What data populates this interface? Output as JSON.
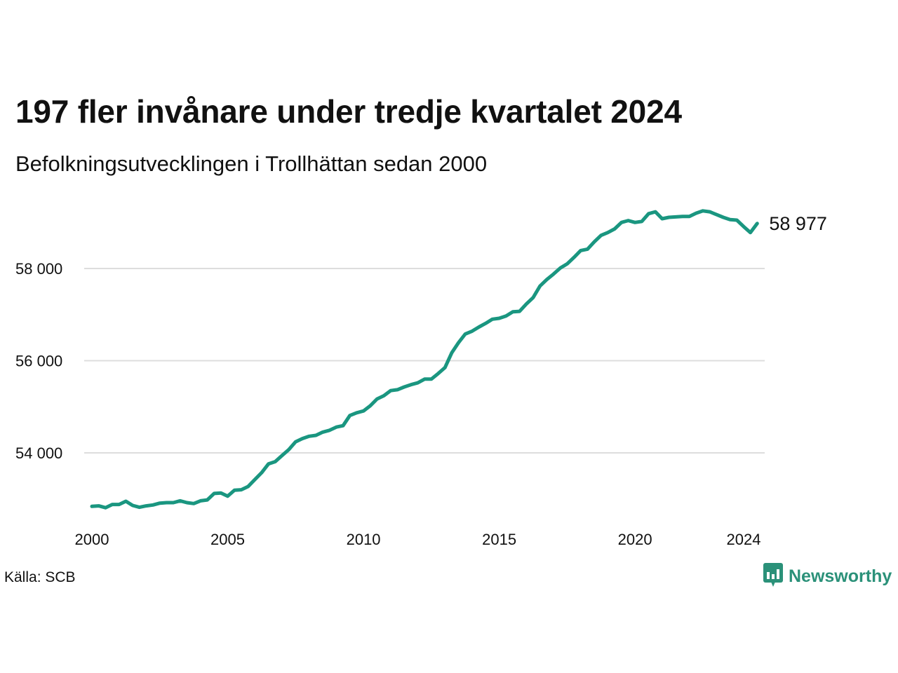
{
  "title": "197 fler invånare under tredje kvartalet 2024",
  "subtitle": "Befolkningsutvecklingen i Trollhättan sedan 2000",
  "source": "Källa: SCB",
  "brand": {
    "name": "Newsworthy",
    "icon": "newsworthy-logo-icon",
    "color": "#2b9179"
  },
  "colors": {
    "line": "#1a9680",
    "grid": "#dddddd",
    "text": "#111111"
  },
  "chart_data": {
    "type": "line",
    "title": "197 fler invånare under tredje kvartalet 2024",
    "subtitle": "Befolkningsutvecklingen i Trollhättan sedan 2000",
    "xlabel": "",
    "ylabel": "",
    "xlim": [
      2000,
      2024.75
    ],
    "ylim": [
      52500,
      59500
    ],
    "x_ticks": [
      2000,
      2005,
      2010,
      2015,
      2020,
      2024
    ],
    "x_tick_labels": [
      "2000",
      "2005",
      "2010",
      "2015",
      "2020",
      "2024"
    ],
    "y_ticks": [
      54000,
      56000,
      58000
    ],
    "y_tick_labels": [
      "54 000",
      "56 000",
      "58 000"
    ],
    "grid": "horizontal",
    "legend": "none",
    "end_label": "58 977",
    "series": [
      {
        "x": [
          "2000 Q1",
          "2000 Q2",
          "2000 Q3",
          "2000 Q4",
          "2001 Q1",
          "2001 Q2",
          "2001 Q3",
          "2001 Q4",
          "2002 Q1",
          "2002 Q2",
          "2002 Q3",
          "2002 Q4",
          "2003 Q1",
          "2003 Q2",
          "2003 Q3",
          "2003 Q4",
          "2004 Q1",
          "2004 Q2",
          "2004 Q3",
          "2004 Q4",
          "2005 Q1",
          "2005 Q2",
          "2005 Q3",
          "2005 Q4",
          "2006 Q1",
          "2006 Q2",
          "2006 Q3",
          "2006 Q4",
          "2007 Q1",
          "2007 Q2",
          "2007 Q3",
          "2007 Q4",
          "2008 Q1",
          "2008 Q2",
          "2008 Q3",
          "2008 Q4",
          "2009 Q1",
          "2009 Q2",
          "2009 Q3",
          "2009 Q4",
          "2010 Q1",
          "2010 Q2",
          "2010 Q3",
          "2010 Q4",
          "2011 Q1",
          "2011 Q2",
          "2011 Q3",
          "2011 Q4",
          "2012 Q1",
          "2012 Q2",
          "2012 Q3",
          "2012 Q4",
          "2013 Q1",
          "2013 Q2",
          "2013 Q3",
          "2013 Q4",
          "2014 Q1",
          "2014 Q2",
          "2014 Q3",
          "2014 Q4",
          "2015 Q1",
          "2015 Q2",
          "2015 Q3",
          "2015 Q4",
          "2016 Q1",
          "2016 Q2",
          "2016 Q3",
          "2016 Q4",
          "2017 Q1",
          "2017 Q2",
          "2017 Q3",
          "2017 Q4",
          "2018 Q1",
          "2018 Q2",
          "2018 Q3",
          "2018 Q4",
          "2019 Q1",
          "2019 Q2",
          "2019 Q3",
          "2019 Q4",
          "2020 Q1",
          "2020 Q2",
          "2020 Q3",
          "2020 Q4",
          "2021 Q1",
          "2021 Q2",
          "2021 Q3",
          "2021 Q4",
          "2022 Q1",
          "2022 Q2",
          "2022 Q3",
          "2022 Q4",
          "2023 Q1",
          "2023 Q2",
          "2023 Q3",
          "2023 Q4",
          "2024 Q1",
          "2024 Q2",
          "2024 Q3"
        ],
        "values": [
          52840,
          52850,
          52810,
          52880,
          52880,
          52950,
          52860,
          52820,
          52850,
          52870,
          52910,
          52920,
          52920,
          52960,
          52920,
          52900,
          52960,
          52980,
          53120,
          53130,
          53060,
          53190,
          53200,
          53270,
          53420,
          53570,
          53760,
          53810,
          53940,
          54070,
          54240,
          54310,
          54360,
          54380,
          54450,
          54490,
          54560,
          54590,
          54810,
          54870,
          54910,
          55020,
          55170,
          55240,
          55350,
          55370,
          55430,
          55480,
          55520,
          55600,
          55600,
          55720,
          55850,
          56170,
          56390,
          56580,
          56640,
          56730,
          56810,
          56900,
          56920,
          56970,
          57060,
          57070,
          57230,
          57370,
          57620,
          57760,
          57880,
          58010,
          58100,
          58240,
          58390,
          58420,
          58580,
          58720,
          58780,
          58860,
          59000,
          59040,
          59000,
          59020,
          59190,
          59230,
          59080,
          59110,
          59120,
          59130,
          59130,
          59200,
          59250,
          59230,
          59170,
          59110,
          59060,
          59050,
          58910,
          58780,
          58977
        ]
      }
    ]
  }
}
